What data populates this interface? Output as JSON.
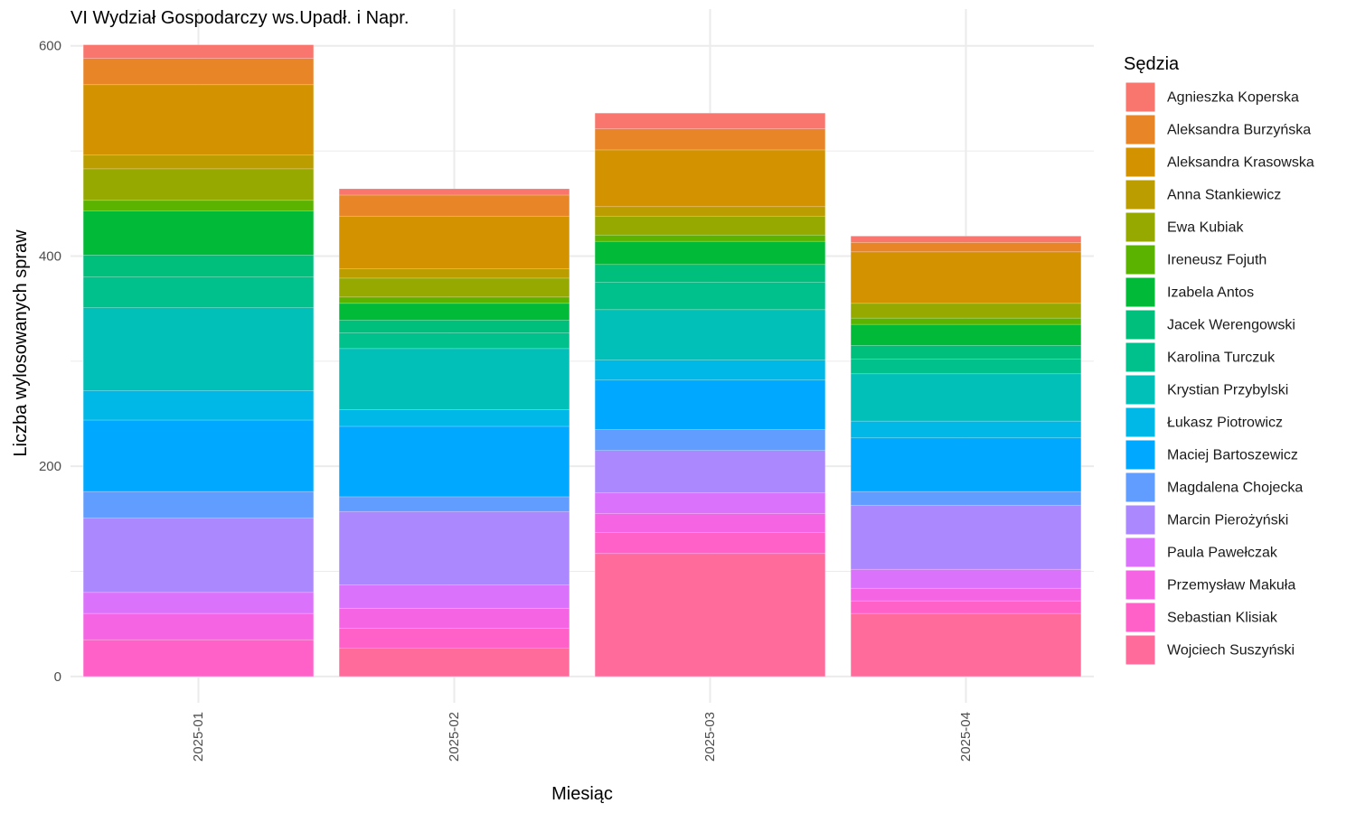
{
  "chart_data": {
    "type": "bar",
    "stacked": true,
    "title": "VI Wydział Gospodarczy ws.Upadł. i Napr.",
    "xlabel": "Miesiąc",
    "ylabel": "Liczba wylosowanych spraw",
    "ylim": [
      -25,
      635
    ],
    "yticks": [
      0,
      200,
      400,
      600
    ],
    "grid": true,
    "legend_title": "Sędzia",
    "legend_position": "right",
    "categories": [
      "2025-01",
      "2025-02",
      "2025-03",
      "2025-04"
    ],
    "series": [
      {
        "name": "Wojciech Suszyński",
        "color": "#FF6C9C",
        "values": [
          0,
          27,
          117,
          60
        ]
      },
      {
        "name": "Sebastian Klisiak",
        "color": "#FF61C9",
        "values": [
          35,
          19,
          20,
          12
        ]
      },
      {
        "name": "Przemysław Makuła",
        "color": "#F564E3",
        "values": [
          25,
          19,
          18,
          12
        ]
      },
      {
        "name": "Paula Pawełczak",
        "color": "#DB72FB",
        "values": [
          20,
          22,
          20,
          18
        ]
      },
      {
        "name": "Marcin Pierożyński",
        "color": "#AC88FF",
        "values": [
          71,
          70,
          40,
          61
        ]
      },
      {
        "name": "Magdalena Chojecka",
        "color": "#619CFF",
        "values": [
          25,
          14,
          20,
          13
        ]
      },
      {
        "name": "Maciej Bartoszewicz",
        "color": "#00A9FF",
        "values": [
          68,
          67,
          47,
          51
        ]
      },
      {
        "name": "Łukasz Piotrowicz",
        "color": "#00B8E7",
        "values": [
          28,
          16,
          19,
          16
        ]
      },
      {
        "name": "Krystian Przybylski",
        "color": "#00C0B8",
        "values": [
          79,
          58,
          48,
          45
        ]
      },
      {
        "name": "Karolina Turczuk",
        "color": "#00C08B",
        "values": [
          29,
          15,
          26,
          14
        ]
      },
      {
        "name": "Jacek Werengowski",
        "color": "#00BF7D",
        "values": [
          21,
          12,
          17,
          13
        ]
      },
      {
        "name": "Izabela Antos",
        "color": "#00BA38",
        "values": [
          42,
          16,
          22,
          20
        ]
      },
      {
        "name": "Ireneusz Fojuth",
        "color": "#5BB300",
        "values": [
          10,
          6,
          6,
          6
        ]
      },
      {
        "name": "Ewa Kubiak",
        "color": "#95A900",
        "values": [
          30,
          18,
          18,
          14
        ]
      },
      {
        "name": "Anna Stankiewicz",
        "color": "#BB9D00",
        "values": [
          13,
          9,
          9,
          0
        ]
      },
      {
        "name": "Aleksandra Krasowska",
        "color": "#D39200",
        "values": [
          67,
          50,
          54,
          49
        ]
      },
      {
        "name": "Aleksandra Burzyńska",
        "color": "#E88526",
        "values": [
          25,
          20,
          20,
          9
        ]
      },
      {
        "name": "Agnieszka Koperska",
        "color": "#F8766D",
        "values": [
          13,
          6,
          15,
          6
        ]
      }
    ],
    "legend_order": [
      "Agnieszka Koperska",
      "Aleksandra Burzyńska",
      "Aleksandra Krasowska",
      "Anna Stankiewicz",
      "Ewa Kubiak",
      "Ireneusz Fojuth",
      "Izabela Antos",
      "Jacek Werengowski",
      "Karolina Turczuk",
      "Krystian Przybylski",
      "Łukasz Piotrowicz",
      "Maciej Bartoszewicz",
      "Magdalena Chojecka",
      "Marcin Pierożyński",
      "Paula Pawełczak",
      "Przemysław Makuła",
      "Sebastian Klisiak",
      "Wojciech Suszyński"
    ]
  }
}
